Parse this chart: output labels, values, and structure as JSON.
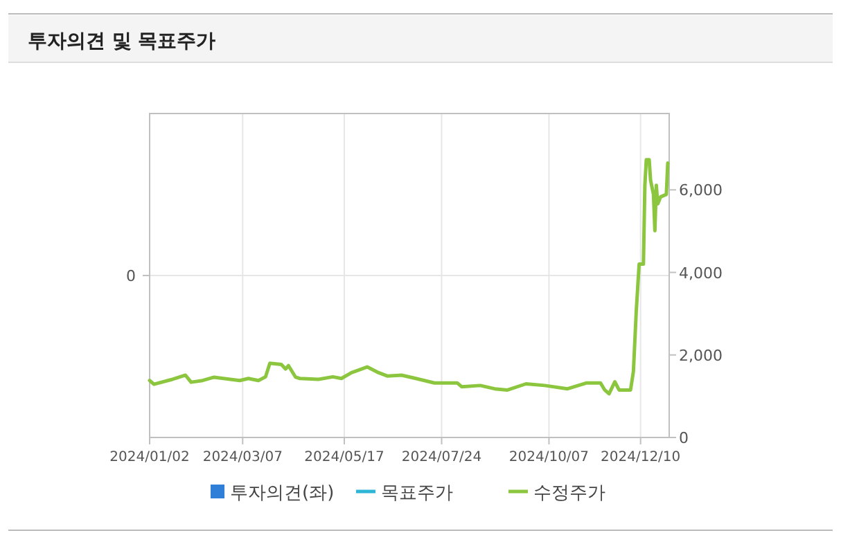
{
  "chart_data": {
    "type": "line",
    "title": "투자의견 및 목표주가",
    "xlim": [
      "2024-01-02",
      "2024-12-30"
    ],
    "xticks": [
      {
        "value": "2024-01-02",
        "label": "2024/01/02"
      },
      {
        "value": "2024-03-07",
        "label": "2024/03/07"
      },
      {
        "value": "2024-05-17",
        "label": "2024/05/17"
      },
      {
        "value": "2024-07-24",
        "label": "2024/07/24"
      },
      {
        "value": "2024-10-07",
        "label": "2024/10/07"
      },
      {
        "value": "2024-12-10",
        "label": "2024/12/10"
      }
    ],
    "annotations": [
      "0"
    ],
    "y2lim": [
      0,
      7850
    ],
    "y2ticks": [
      0,
      {
        "value": 2000,
        "label": "2,000"
      },
      {
        "value": 4000,
        "label": "4,000"
      },
      {
        "value": 6000,
        "label": "6,000"
      }
    ],
    "grid": true,
    "legend": "bottom",
    "line_style": "solid",
    "series": [
      {
        "name": "투자의견(좌)",
        "type": "bar",
        "color": "#2f7ed8"
      },
      {
        "name": "목표주가",
        "axis": "y2",
        "color": "#2fb6d6"
      },
      {
        "name": "수정주가",
        "axis": "y2",
        "color": "#8cc63f",
        "x": [
          "2024-01-02",
          "2024-01-05",
          "2024-01-17",
          "2024-01-27",
          "2024-01-31",
          "2024-02-08",
          "2024-02-16",
          "2024-03-05",
          "2024-03-11",
          "2024-03-18",
          "2024-03-23",
          "2024-03-26",
          "2024-04-03",
          "2024-04-06",
          "2024-04-08",
          "2024-04-13",
          "2024-04-16",
          "2024-04-29",
          "2024-05-09",
          "2024-05-15",
          "2024-05-22",
          "2024-06-02",
          "2024-06-10",
          "2024-06-16",
          "2024-06-26",
          "2024-07-06",
          "2024-07-19",
          "2024-08-04",
          "2024-08-07",
          "2024-08-20",
          "2024-08-30",
          "2024-09-08",
          "2024-09-21",
          "2024-10-04",
          "2024-10-20",
          "2024-11-02",
          "2024-11-12",
          "2024-11-15",
          "2024-11-18",
          "2024-11-22",
          "2024-11-25",
          "2024-12-03",
          "2024-12-05",
          "2024-12-07",
          "2024-12-09",
          "2024-12-12",
          "2024-12-13",
          "2024-12-14",
          "2024-12-16",
          "2024-12-17",
          "2024-12-19",
          "2024-12-20",
          "2024-12-21",
          "2024-12-22",
          "2024-12-24",
          "2024-12-28",
          "2024-12-29"
        ],
        "values": [
          1380,
          1290,
          1400,
          1510,
          1340,
          1380,
          1460,
          1380,
          1430,
          1380,
          1470,
          1800,
          1770,
          1660,
          1740,
          1460,
          1430,
          1410,
          1470,
          1430,
          1570,
          1710,
          1570,
          1490,
          1510,
          1430,
          1320,
          1320,
          1230,
          1260,
          1180,
          1150,
          1300,
          1260,
          1180,
          1320,
          1320,
          1150,
          1060,
          1350,
          1150,
          1150,
          1600,
          3070,
          4200,
          4200,
          6110,
          6730,
          6730,
          6230,
          5890,
          5010,
          6110,
          5660,
          5830,
          5890,
          6650
        ]
      }
    ]
  }
}
